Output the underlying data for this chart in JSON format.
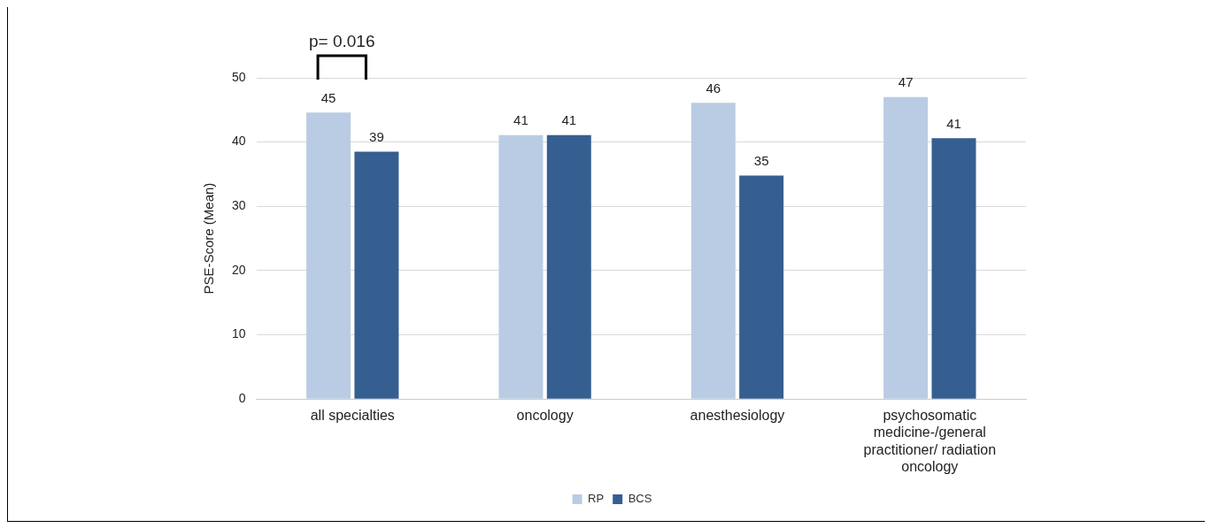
{
  "chart_data": {
    "type": "bar",
    "categories": [
      "all specialties",
      "oncology",
      "anesthesiology",
      "psychosomatic medicine-/general practitioner/ radiation oncology"
    ],
    "series": [
      {
        "name": "RP",
        "color": "#b9cce4",
        "values": [
          44.6,
          41.1,
          46.1,
          47.0
        ],
        "value_labels": [
          "45",
          "41",
          "46",
          "47"
        ]
      },
      {
        "name": "BCS",
        "color": "#355f91",
        "values": [
          38.5,
          41.1,
          34.8,
          40.6
        ],
        "value_labels": [
          "39",
          "41",
          "35",
          "41"
        ]
      }
    ],
    "ylabel": "PSE-Score (Mean)",
    "ylim": [
      0,
      50
    ],
    "yticks": [
      0,
      10,
      20,
      30,
      40,
      50
    ],
    "grid": "y",
    "legend": "bottom",
    "annotations": [
      "p= 0.016"
    ]
  }
}
